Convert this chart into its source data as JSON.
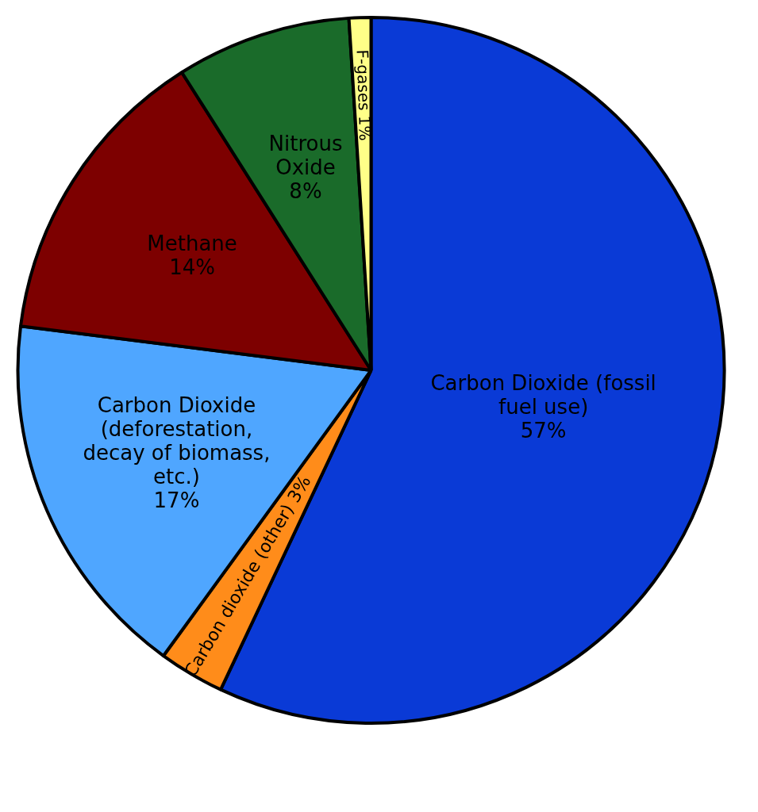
{
  "chart_data": {
    "type": "pie",
    "categories": [
      "Carbon Dioxide (fossil fuel use)",
      "Carbon dioxide (other)",
      "Carbon Dioxide (deforestation, decay of biomass, etc.)",
      "Methane",
      "Nitrous Oxide",
      "F-gases"
    ],
    "values": [
      57,
      3,
      17,
      14,
      8,
      1
    ],
    "value_labels": [
      "57%",
      "3%",
      "17%",
      "14%",
      "8%",
      "1%"
    ],
    "colors": [
      "#0a3ad6",
      "#ff8c1a",
      "#4fa6ff",
      "#7d0000",
      "#1a6b2a",
      "#ffff88"
    ],
    "legend": false
  }
}
